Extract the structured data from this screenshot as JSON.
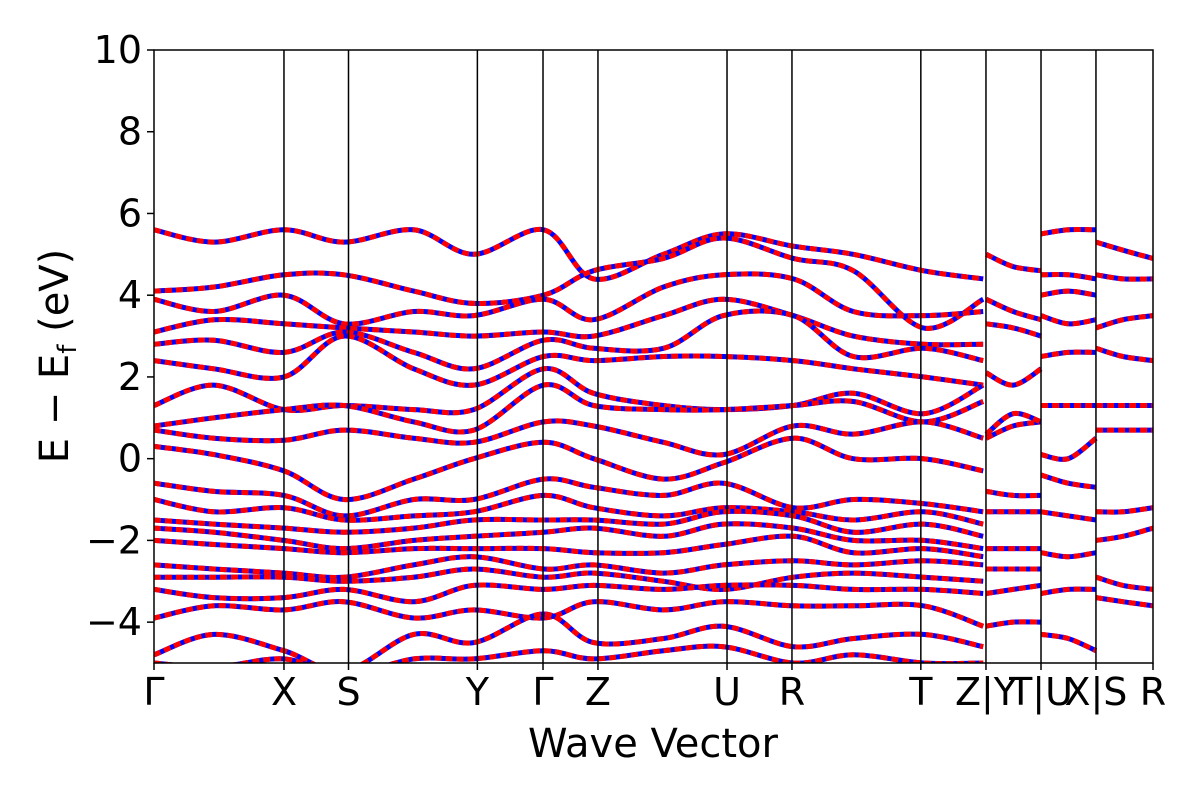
{
  "chart_data": {
    "type": "line",
    "title": "",
    "xlabel": "Wave Vector",
    "ylabel_main": "E − E",
    "ylabel_sub": "f",
    "ylabel_unit": " (eV)",
    "ylim": [
      -5,
      10
    ],
    "yticks": [
      {
        "value": 10,
        "label": "10"
      },
      {
        "value": 8,
        "label": "8"
      },
      {
        "value": 6,
        "label": "6"
      },
      {
        "value": 4,
        "label": "4"
      },
      {
        "value": 2,
        "label": "2"
      },
      {
        "value": 0,
        "label": "0"
      },
      {
        "value": -2,
        "label": "−2"
      },
      {
        "value": -4,
        "label": "−4"
      }
    ],
    "xlim": [
      0,
      1
    ],
    "kpath_ticks": [
      {
        "x": 0.0,
        "label": "Γ"
      },
      {
        "x": 0.1301,
        "label": "X"
      },
      {
        "x": 0.1947,
        "label": "S"
      },
      {
        "x": 0.3237,
        "label": "Y"
      },
      {
        "x": 0.3894,
        "label": "Γ"
      },
      {
        "x": 0.4444,
        "label": "Z"
      },
      {
        "x": 0.5736,
        "label": "U"
      },
      {
        "x": 0.6386,
        "label": "R"
      },
      {
        "x": 0.7676,
        "label": "T"
      },
      {
        "x": 0.8328,
        "label": "Z|Y"
      },
      {
        "x": 0.8879,
        "label": "T|U"
      },
      {
        "x": 0.9429,
        "label": "X|S"
      },
      {
        "x": 1.0,
        "label": "R"
      }
    ],
    "series_colors": {
      "line": "#ff0000",
      "dash": "#0000ff"
    },
    "bands": [
      {
        "x": [
          0,
          0.06,
          0.13,
          0.19,
          0.26,
          0.32,
          0.39,
          0.44,
          0.51,
          0.57,
          0.64,
          0.7,
          0.77,
          0.83
        ],
        "y": [
          5.6,
          5.3,
          5.6,
          5.3,
          5.6,
          5.0,
          5.6,
          4.4,
          5.0,
          5.5,
          5.2,
          5.0,
          4.6,
          4.4
        ]
      },
      {
        "x": [
          0,
          0.06,
          0.13,
          0.19,
          0.26,
          0.32,
          0.39,
          0.44,
          0.51,
          0.57,
          0.64,
          0.7,
          0.77,
          0.83
        ],
        "y": [
          4.1,
          4.2,
          4.5,
          4.5,
          4.1,
          3.8,
          4.0,
          4.6,
          4.9,
          5.4,
          4.9,
          4.6,
          3.2,
          3.9
        ]
      },
      {
        "x": [
          0,
          0.06,
          0.13,
          0.19,
          0.26,
          0.32,
          0.39,
          0.44,
          0.51,
          0.57,
          0.64,
          0.7,
          0.77,
          0.83
        ],
        "y": [
          3.9,
          3.6,
          4.0,
          3.3,
          3.6,
          3.5,
          3.9,
          3.4,
          4.2,
          4.5,
          4.4,
          3.6,
          3.5,
          3.6
        ]
      },
      {
        "x": [
          0,
          0.06,
          0.13,
          0.19,
          0.26,
          0.32,
          0.39,
          0.44,
          0.51,
          0.57,
          0.64,
          0.7,
          0.77,
          0.83
        ],
        "y": [
          3.1,
          3.4,
          3.3,
          3.2,
          3.1,
          3.0,
          3.1,
          3.0,
          3.5,
          3.9,
          3.5,
          3.0,
          2.8,
          2.8
        ]
      },
      {
        "x": [
          0,
          0.06,
          0.13,
          0.19,
          0.26,
          0.32,
          0.39,
          0.44,
          0.51,
          0.57,
          0.64,
          0.7,
          0.77,
          0.83
        ],
        "y": [
          2.8,
          2.9,
          2.6,
          3.1,
          2.6,
          2.2,
          2.9,
          2.7,
          2.7,
          3.5,
          3.5,
          2.5,
          2.7,
          2.4
        ]
      },
      {
        "x": [
          0,
          0.06,
          0.13,
          0.19,
          0.26,
          0.32,
          0.39,
          0.44,
          0.51,
          0.57,
          0.64,
          0.7,
          0.77,
          0.83
        ],
        "y": [
          2.4,
          2.2,
          2.0,
          3.0,
          2.2,
          1.8,
          2.5,
          2.4,
          2.5,
          2.5,
          2.4,
          2.2,
          2.0,
          1.8
        ]
      },
      {
        "x": [
          0,
          0.06,
          0.13,
          0.19,
          0.26,
          0.32,
          0.39,
          0.44,
          0.51,
          0.57,
          0.64,
          0.7,
          0.77,
          0.83
        ],
        "y": [
          1.3,
          1.8,
          1.2,
          1.3,
          1.2,
          1.2,
          2.2,
          1.6,
          1.3,
          1.2,
          1.3,
          1.6,
          1.1,
          1.8
        ]
      },
      {
        "x": [
          0,
          0.06,
          0.13,
          0.19,
          0.26,
          0.32,
          0.39,
          0.44,
          0.51,
          0.57,
          0.64,
          0.7,
          0.77,
          0.83
        ],
        "y": [
          0.8,
          1.0,
          1.2,
          1.3,
          0.9,
          0.7,
          1.8,
          1.3,
          1.2,
          1.2,
          1.3,
          1.4,
          0.9,
          1.4
        ]
      },
      {
        "x": [
          0,
          0.06,
          0.13,
          0.19,
          0.26,
          0.32,
          0.39,
          0.44,
          0.51,
          0.57,
          0.64,
          0.7,
          0.77,
          0.83
        ],
        "y": [
          0.7,
          0.5,
          0.45,
          0.7,
          0.5,
          0.4,
          0.9,
          0.8,
          0.4,
          0.1,
          0.8,
          0.6,
          0.9,
          0.5
        ]
      },
      {
        "x": [
          0,
          0.06,
          0.13,
          0.19,
          0.26,
          0.32,
          0.39,
          0.44,
          0.51,
          0.57,
          0.64,
          0.7,
          0.77,
          0.83
        ],
        "y": [
          0.3,
          0.1,
          -0.3,
          -1.0,
          -0.5,
          0.0,
          0.4,
          0.0,
          -0.5,
          -0.1,
          0.5,
          0.0,
          0.0,
          -0.3
        ]
      },
      {
        "x": [
          0,
          0.06,
          0.13,
          0.19,
          0.26,
          0.32,
          0.39,
          0.44,
          0.51,
          0.57,
          0.64,
          0.7,
          0.77,
          0.83
        ],
        "y": [
          -0.6,
          -0.8,
          -0.9,
          -1.4,
          -1.0,
          -1.0,
          -0.5,
          -0.7,
          -0.9,
          -0.6,
          -1.2,
          -1.0,
          -1.1,
          -1.3
        ]
      },
      {
        "x": [
          0,
          0.06,
          0.13,
          0.19,
          0.26,
          0.32,
          0.39,
          0.44,
          0.51,
          0.57,
          0.64,
          0.7,
          0.77,
          0.83
        ],
        "y": [
          -1.0,
          -1.3,
          -1.2,
          -1.5,
          -1.4,
          -1.3,
          -0.9,
          -1.2,
          -1.4,
          -1.2,
          -1.3,
          -1.5,
          -1.3,
          -1.6
        ]
      },
      {
        "x": [
          0,
          0.06,
          0.13,
          0.19,
          0.26,
          0.32,
          0.39,
          0.44,
          0.51,
          0.57,
          0.64,
          0.7,
          0.77,
          0.83
        ],
        "y": [
          -1.5,
          -1.6,
          -1.7,
          -1.8,
          -1.7,
          -1.5,
          -1.5,
          -1.5,
          -1.6,
          -1.3,
          -1.4,
          -1.8,
          -1.6,
          -1.9
        ]
      },
      {
        "x": [
          0,
          0.06,
          0.13,
          0.19,
          0.26,
          0.32,
          0.39,
          0.44,
          0.51,
          0.57,
          0.64,
          0.7,
          0.77,
          0.83
        ],
        "y": [
          -1.7,
          -1.8,
          -2.0,
          -2.2,
          -2.0,
          -1.9,
          -1.8,
          -1.7,
          -1.9,
          -1.6,
          -1.7,
          -2.0,
          -2.0,
          -2.2
        ]
      },
      {
        "x": [
          0,
          0.06,
          0.13,
          0.19,
          0.26,
          0.32,
          0.39,
          0.44,
          0.51,
          0.57,
          0.64,
          0.7,
          0.77,
          0.83
        ],
        "y": [
          -2.0,
          -2.1,
          -2.2,
          -2.3,
          -2.2,
          -2.2,
          -2.2,
          -2.3,
          -2.3,
          -2.1,
          -1.9,
          -2.3,
          -2.2,
          -2.4
        ]
      },
      {
        "x": [
          0,
          0.06,
          0.13,
          0.19,
          0.26,
          0.32,
          0.39,
          0.44,
          0.51,
          0.57,
          0.64,
          0.7,
          0.77,
          0.83
        ],
        "y": [
          -2.6,
          -2.7,
          -2.8,
          -2.9,
          -2.6,
          -2.4,
          -2.7,
          -2.6,
          -2.8,
          -2.6,
          -2.5,
          -2.6,
          -2.5,
          -2.6
        ]
      },
      {
        "x": [
          0,
          0.06,
          0.13,
          0.19,
          0.26,
          0.32,
          0.39,
          0.44,
          0.51,
          0.57,
          0.64,
          0.7,
          0.77,
          0.83
        ],
        "y": [
          -2.9,
          -2.9,
          -2.9,
          -3.0,
          -2.9,
          -2.7,
          -2.9,
          -2.8,
          -3.0,
          -3.2,
          -2.9,
          -2.8,
          -2.9,
          -3.0
        ]
      },
      {
        "x": [
          0,
          0.06,
          0.13,
          0.19,
          0.26,
          0.32,
          0.39,
          0.44,
          0.51,
          0.57,
          0.64,
          0.7,
          0.77,
          0.83
        ],
        "y": [
          -3.2,
          -3.4,
          -3.4,
          -3.2,
          -3.5,
          -3.1,
          -3.2,
          -3.1,
          -3.2,
          -3.1,
          -3.1,
          -3.2,
          -3.2,
          -3.3
        ]
      },
      {
        "x": [
          0,
          0.06,
          0.13,
          0.19,
          0.26,
          0.32,
          0.39,
          0.44,
          0.51,
          0.57,
          0.64,
          0.7,
          0.77,
          0.83
        ],
        "y": [
          -3.9,
          -3.6,
          -3.7,
          -3.5,
          -3.9,
          -3.7,
          -3.9,
          -3.5,
          -3.7,
          -3.5,
          -3.6,
          -3.6,
          -3.6,
          -4.1
        ]
      },
      {
        "x": [
          0,
          0.06,
          0.13,
          0.19,
          0.26,
          0.32,
          0.39,
          0.44,
          0.51,
          0.57,
          0.64,
          0.7,
          0.77,
          0.83
        ],
        "y": [
          -4.8,
          -4.3,
          -4.7,
          -5.2,
          -4.3,
          -4.5,
          -3.8,
          -4.5,
          -4.4,
          -4.1,
          -4.6,
          -4.4,
          -4.3,
          -4.6
        ]
      },
      {
        "x": [
          0,
          0.06,
          0.13,
          0.19,
          0.26,
          0.32,
          0.39,
          0.44,
          0.51,
          0.57,
          0.64,
          0.7,
          0.77,
          0.83
        ],
        "y": [
          -5.0,
          -5.1,
          -4.9,
          -5.3,
          -4.9,
          -4.9,
          -4.7,
          -4.9,
          -4.7,
          -4.6,
          -5.0,
          -4.8,
          -5.0,
          -5.0
        ]
      },
      {
        "x": [
          0.833,
          0.86,
          0.888
        ],
        "y": [
          5.0,
          4.7,
          4.6
        ]
      },
      {
        "x": [
          0.833,
          0.86,
          0.888
        ],
        "y": [
          3.9,
          3.6,
          3.4
        ]
      },
      {
        "x": [
          0.833,
          0.86,
          0.888
        ],
        "y": [
          3.3,
          3.2,
          3.0
        ]
      },
      {
        "x": [
          0.833,
          0.86,
          0.888
        ],
        "y": [
          2.1,
          1.8,
          2.2
        ]
      },
      {
        "x": [
          0.833,
          0.86,
          0.888
        ],
        "y": [
          0.5,
          0.8,
          0.9
        ]
      },
      {
        "x": [
          0.833,
          0.86,
          0.888
        ],
        "y": [
          0.6,
          1.1,
          0.9
        ]
      },
      {
        "x": [
          0.833,
          0.86,
          0.888
        ],
        "y": [
          -0.8,
          -0.9,
          -0.9
        ]
      },
      {
        "x": [
          0.833,
          0.86,
          0.888
        ],
        "y": [
          -1.3,
          -1.3,
          -1.3
        ]
      },
      {
        "x": [
          0.833,
          0.86,
          0.888
        ],
        "y": [
          -2.2,
          -2.2,
          -2.2
        ]
      },
      {
        "x": [
          0.833,
          0.86,
          0.888
        ],
        "y": [
          -2.7,
          -2.7,
          -2.7
        ]
      },
      {
        "x": [
          0.833,
          0.86,
          0.888
        ],
        "y": [
          -3.3,
          -3.2,
          -3.1
        ]
      },
      {
        "x": [
          0.833,
          0.86,
          0.888
        ],
        "y": [
          -4.1,
          -4.0,
          -4.0
        ]
      },
      {
        "x": [
          0.888,
          0.915,
          0.943
        ],
        "y": [
          5.5,
          5.6,
          5.6
        ]
      },
      {
        "x": [
          0.888,
          0.915,
          0.943
        ],
        "y": [
          4.5,
          4.5,
          4.4
        ]
      },
      {
        "x": [
          0.888,
          0.915,
          0.943
        ],
        "y": [
          4.0,
          4.1,
          4.0
        ]
      },
      {
        "x": [
          0.888,
          0.915,
          0.943
        ],
        "y": [
          3.5,
          3.3,
          3.4
        ]
      },
      {
        "x": [
          0.888,
          0.915,
          0.943
        ],
        "y": [
          2.5,
          2.6,
          2.6
        ]
      },
      {
        "x": [
          0.888,
          0.915,
          0.943
        ],
        "y": [
          1.3,
          1.3,
          1.3
        ]
      },
      {
        "x": [
          0.888,
          0.915,
          0.943
        ],
        "y": [
          0.1,
          0.0,
          0.5
        ]
      },
      {
        "x": [
          0.888,
          0.915,
          0.943
        ],
        "y": [
          -0.4,
          -0.6,
          -0.7
        ]
      },
      {
        "x": [
          0.888,
          0.915,
          0.943
        ],
        "y": [
          -1.3,
          -1.4,
          -1.5
        ]
      },
      {
        "x": [
          0.888,
          0.915,
          0.943
        ],
        "y": [
          -2.3,
          -2.4,
          -2.3
        ]
      },
      {
        "x": [
          0.888,
          0.915,
          0.943
        ],
        "y": [
          -3.3,
          -3.2,
          -3.2
        ]
      },
      {
        "x": [
          0.888,
          0.915,
          0.943
        ],
        "y": [
          -4.3,
          -4.4,
          -4.7
        ]
      },
      {
        "x": [
          0.943,
          0.97,
          1.0
        ],
        "y": [
          5.3,
          5.1,
          4.9
        ]
      },
      {
        "x": [
          0.943,
          0.97,
          1.0
        ],
        "y": [
          4.5,
          4.4,
          4.4
        ]
      },
      {
        "x": [
          0.943,
          0.97,
          1.0
        ],
        "y": [
          3.2,
          3.4,
          3.5
        ]
      },
      {
        "x": [
          0.943,
          0.97,
          1.0
        ],
        "y": [
          2.7,
          2.5,
          2.4
        ]
      },
      {
        "x": [
          0.943,
          0.97,
          1.0
        ],
        "y": [
          1.3,
          1.3,
          1.3
        ]
      },
      {
        "x": [
          0.943,
          0.97,
          1.0
        ],
        "y": [
          0.7,
          0.7,
          0.7
        ]
      },
      {
        "x": [
          0.943,
          0.97,
          1.0
        ],
        "y": [
          -1.3,
          -1.3,
          -1.2
        ]
      },
      {
        "x": [
          0.943,
          0.97,
          1.0
        ],
        "y": [
          -2.0,
          -1.9,
          -1.7
        ]
      },
      {
        "x": [
          0.943,
          0.97,
          1.0
        ],
        "y": [
          -2.9,
          -3.1,
          -3.2
        ]
      },
      {
        "x": [
          0.943,
          0.97,
          1.0
        ],
        "y": [
          -3.4,
          -3.5,
          -3.6
        ]
      }
    ]
  }
}
